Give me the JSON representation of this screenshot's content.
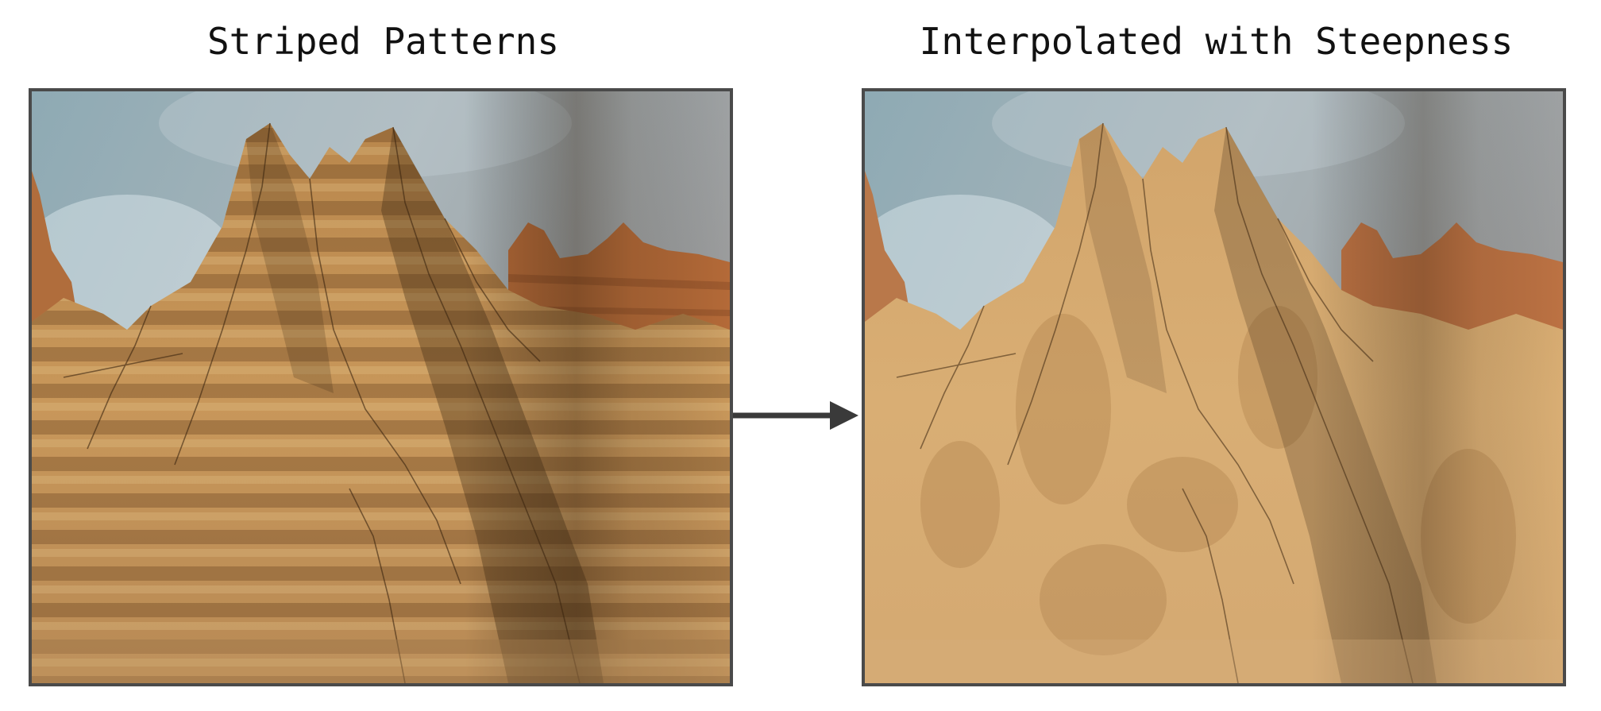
{
  "captions": {
    "left": "Striped Patterns",
    "right": "Interpolated with Steepness"
  },
  "colors": {
    "border": "#4a4a4a",
    "arrow": "#3a3a3a",
    "sky_top": "#8fa3ad",
    "sky_haze": "#b9c6cc",
    "rock_light": "#d6ad72",
    "rock_mid": "#b8864a",
    "rock_dark": "#6e4a26",
    "far_ridge": "#b96f3e",
    "stripe_dark": "#7a5128"
  },
  "images": {
    "left": "terrain-render-striped",
    "right": "terrain-render-interpolated"
  }
}
